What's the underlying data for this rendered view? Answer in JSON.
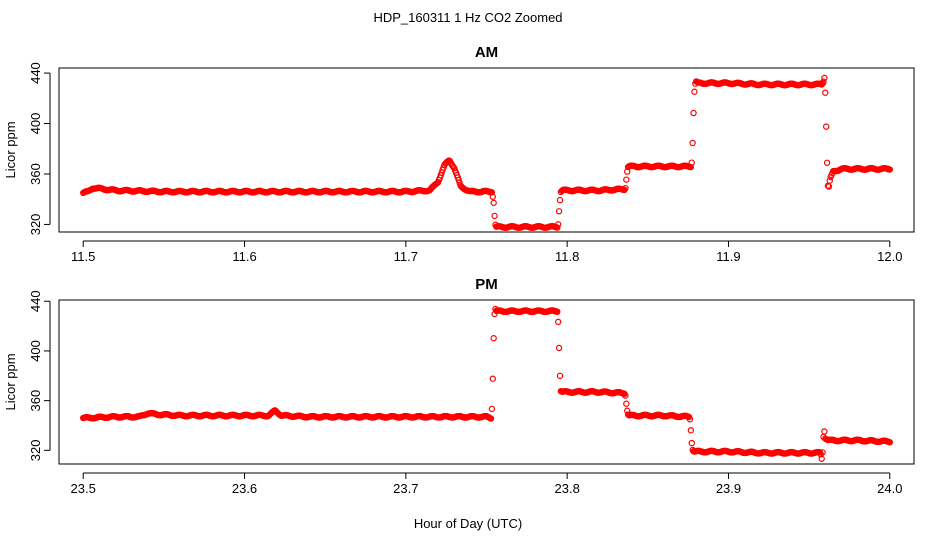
{
  "title": "HDP_160311  1 Hz CO2 Zoomed",
  "xlabel": "Hour of Day (UTC)",
  "colors": {
    "points": "#ff0000",
    "axes": "#000000",
    "background": "#ffffff"
  },
  "chart_data": [
    {
      "type": "scatter",
      "title": "AM",
      "ylabel": "Licor ppm",
      "xlim": [
        11.485,
        12.015
      ],
      "ylim": [
        314,
        444
      ],
      "xticks": [
        11.5,
        11.6,
        11.7,
        11.8,
        11.9,
        12.0
      ],
      "xtick_labels": [
        "11.5",
        "11.6",
        "11.7",
        "11.8",
        "11.9",
        "12.0"
      ],
      "yticks": [
        320,
        360,
        400,
        440
      ],
      "ytick_labels": [
        "320",
        "360",
        "400",
        "440"
      ],
      "series": [
        {
          "values_x": [
            11.5,
            11.503,
            11.506,
            11.52,
            11.55,
            11.6,
            11.65,
            11.7,
            11.715,
            11.72,
            11.724,
            11.727,
            11.73,
            11.734,
            11.74,
            11.75,
            11.7535,
            11.7545,
            11.755,
            11.7555,
            11.756,
            11.76,
            11.78,
            11.794,
            11.7945,
            11.795,
            11.7955,
            11.796,
            11.797,
            11.8,
            11.82,
            11.836,
            11.8365,
            11.837,
            11.8375,
            11.838,
            11.84,
            11.86,
            11.877,
            11.8775,
            11.878,
            11.8785,
            11.879,
            11.8795,
            11.88,
            11.881,
            11.9,
            11.92,
            11.94,
            11.958,
            11.959,
            11.9595,
            11.96,
            11.9605,
            11.961,
            11.9615,
            11.962,
            11.963,
            11.965,
            11.97,
            11.98,
            11.99,
            12.0
          ],
          "values_y": [
            345,
            346,
            349,
            347,
            346,
            346,
            346,
            346,
            347,
            354,
            367,
            371,
            365,
            350,
            346,
            346,
            346,
            337,
            327,
            320,
            318,
            318,
            318,
            318,
            321,
            331,
            339,
            346,
            347,
            347,
            347,
            348,
            354,
            360,
            365,
            366,
            366,
            366,
            366,
            374,
            394,
            416,
            428,
            432,
            433,
            432,
            432,
            431,
            431,
            431,
            434,
            437,
            425,
            401,
            374,
            352,
            348,
            356,
            362,
            364,
            364,
            364,
            364
          ]
        }
      ]
    },
    {
      "type": "scatter",
      "title": "PM",
      "ylabel": "Licor ppm",
      "xlim": [
        23.485,
        24.015
      ],
      "ylim": [
        309,
        441
      ],
      "xticks": [
        23.5,
        23.6,
        23.7,
        23.8,
        23.9,
        24.0
      ],
      "xtick_labels": [
        "23.5",
        "23.6",
        "23.7",
        "23.8",
        "23.9",
        "24.0"
      ],
      "yticks": [
        320,
        360,
        400,
        440
      ],
      "ytick_labels": [
        "320",
        "360",
        "400",
        "440"
      ],
      "series": [
        {
          "values_x": [
            23.5,
            23.52,
            23.535,
            23.54,
            23.545,
            23.56,
            23.6,
            23.615,
            23.619,
            23.623,
            23.64,
            23.7,
            23.75,
            23.753,
            23.7535,
            23.754,
            23.7545,
            23.755,
            23.7555,
            23.756,
            23.76,
            23.78,
            23.794,
            23.7945,
            23.795,
            23.7955,
            23.796,
            23.797,
            23.8,
            23.82,
            23.836,
            23.8365,
            23.837,
            23.8375,
            23.838,
            23.84,
            23.86,
            23.876,
            23.8765,
            23.877,
            23.8775,
            23.878,
            23.879,
            23.88,
            23.9,
            23.92,
            23.94,
            23.957,
            23.958,
            23.9585,
            23.959,
            23.9595,
            23.96,
            23.962,
            23.97,
            23.98,
            24.0
          ],
          "values_y": [
            346,
            347,
            347,
            350,
            349,
            348,
            348,
            348,
            352,
            348,
            347,
            347,
            347,
            346,
            358,
            384,
            414,
            430,
            434,
            432,
            432,
            432,
            432,
            423,
            403,
            382,
            368,
            367,
            367,
            367,
            366,
            360,
            354,
            350,
            348,
            348,
            348,
            347,
            340,
            330,
            322,
            320,
            319,
            319,
            319,
            318,
            318,
            318,
            312,
            322,
            334,
            336,
            330,
            328,
            328,
            328,
            327
          ]
        }
      ]
    }
  ]
}
